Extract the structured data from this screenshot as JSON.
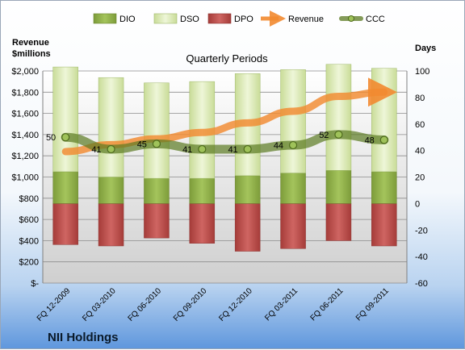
{
  "chart_data": {
    "type": "bar",
    "title": "Quarterly Periods",
    "company": "NII Holdings",
    "left_axis_title": [
      "Revenue",
      "$millions"
    ],
    "right_axis_title": "Days",
    "categories": [
      "FQ 12-2009",
      "FQ 03-2010",
      "FQ 06-2010",
      "FQ 09-2010",
      "FQ 12-2010",
      "FQ 03-2011",
      "FQ 06-2011",
      "FQ 09-2011"
    ],
    "left_axis": {
      "min": 0,
      "max": 2000,
      "step": 200,
      "tick_labels": [
        "$-",
        "$200",
        "$400",
        "$600",
        "$800",
        "$1,000",
        "$1,200",
        "$1,400",
        "$1,600",
        "$1,800",
        "$2,000"
      ]
    },
    "right_axis": {
      "min": -60,
      "max": 100,
      "step": 20,
      "tick_labels": [
        "-60",
        "-40",
        "-20",
        "0",
        "20",
        "40",
        "60",
        "80",
        "100"
      ]
    },
    "series": [
      {
        "name": "DIO",
        "kind": "bar",
        "axis": "right",
        "values": [
          24,
          20,
          19,
          19,
          21,
          23,
          25,
          24
        ],
        "color": "#8fb04a"
      },
      {
        "name": "DSO",
        "kind": "bar",
        "axis": "right",
        "values": [
          79,
          75,
          72,
          73,
          77,
          78,
          80,
          78
        ],
        "color": "#d8e9b0"
      },
      {
        "name": "DPO",
        "kind": "bar",
        "axis": "right",
        "values": [
          -31,
          -32,
          -26,
          -30,
          -36,
          -34,
          -28,
          -32
        ],
        "color": "#c0504d"
      },
      {
        "name": "Revenue",
        "kind": "line",
        "axis": "left",
        "values": [
          1240,
          1305,
          1360,
          1420,
          1510,
          1620,
          1760,
          1800
        ],
        "color": "#f28a30"
      },
      {
        "name": "CCC",
        "kind": "line",
        "axis": "right",
        "values": [
          50,
          41,
          45,
          41,
          41,
          44,
          52,
          48
        ],
        "labels": [
          "50",
          "41",
          "45",
          "41",
          "41",
          "44",
          "52",
          "48"
        ],
        "color": "#6a8a2e"
      }
    ],
    "legend_position": "top",
    "grid": true
  }
}
